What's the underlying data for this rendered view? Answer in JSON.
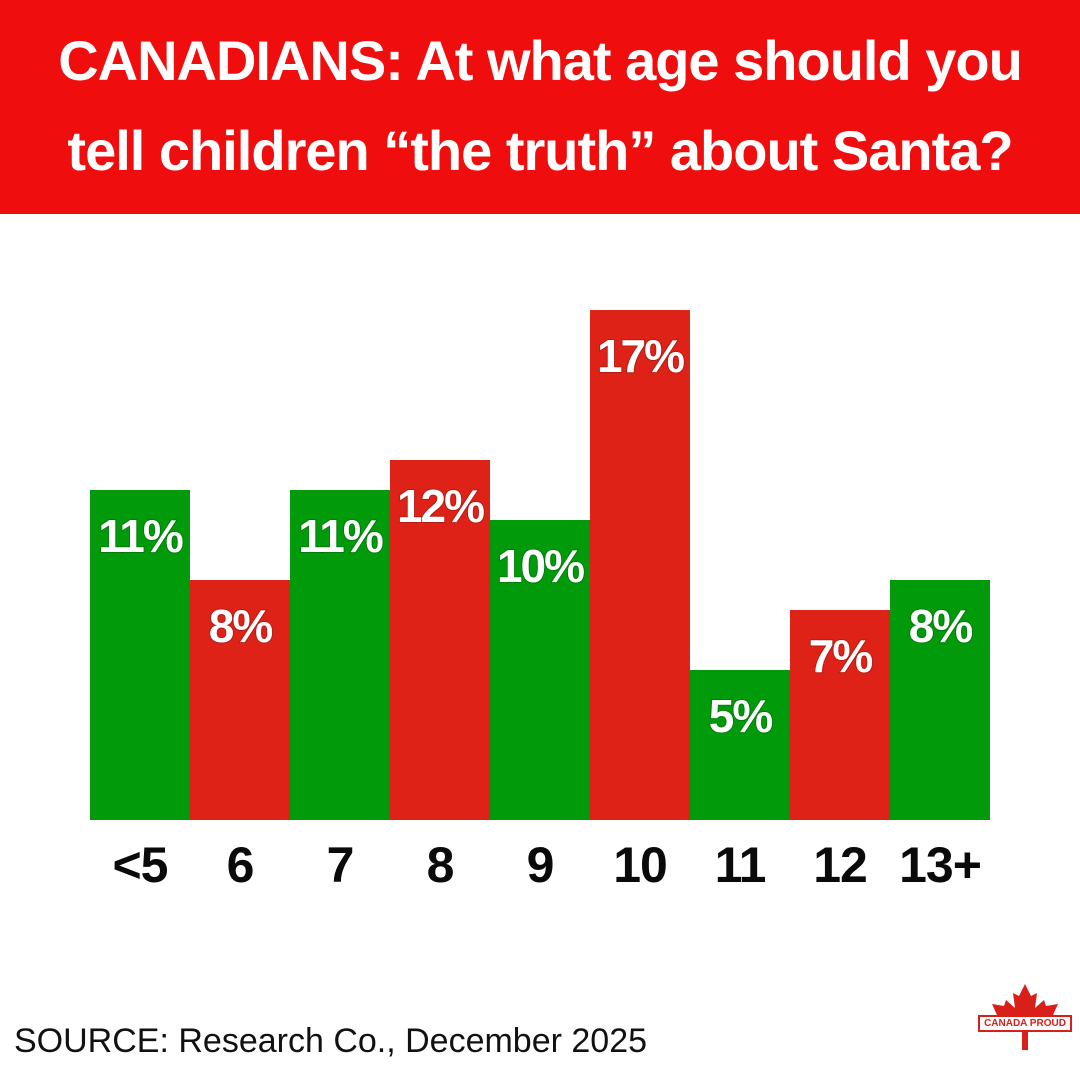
{
  "header": {
    "title_line1": "CANADIANS: At what age should you",
    "title_line2": "tell children “the truth” about Santa?"
  },
  "chart_data": {
    "type": "bar",
    "title": "CANADIANS: At what age should you tell children “the truth” about Santa?",
    "xlabel": "",
    "ylabel": "",
    "ylim": [
      0,
      17
    ],
    "categories": [
      "<5",
      "6",
      "7",
      "8",
      "9",
      "10",
      "11",
      "12",
      "13+"
    ],
    "values": [
      11,
      8,
      11,
      12,
      10,
      17,
      5,
      7,
      8
    ],
    "value_labels": [
      "11%",
      "8%",
      "11%",
      "12%",
      "10%",
      "17%",
      "5%",
      "7%",
      "8%"
    ],
    "bar_colors": [
      "#009a0a",
      "#de2217",
      "#009a0a",
      "#de2217",
      "#009a0a",
      "#de2217",
      "#009a0a",
      "#de2217",
      "#009a0a"
    ],
    "grid": false,
    "legend": "none"
  },
  "footer": {
    "source": "SOURCE: Research Co., December 2025",
    "logo_text": "CANADA PROUD",
    "logo_icon": "maple-leaf-icon"
  },
  "colors": {
    "banner": "#f00d0d",
    "green": "#009a0a",
    "red": "#de2217",
    "text_dark": "#0a0a0a"
  }
}
